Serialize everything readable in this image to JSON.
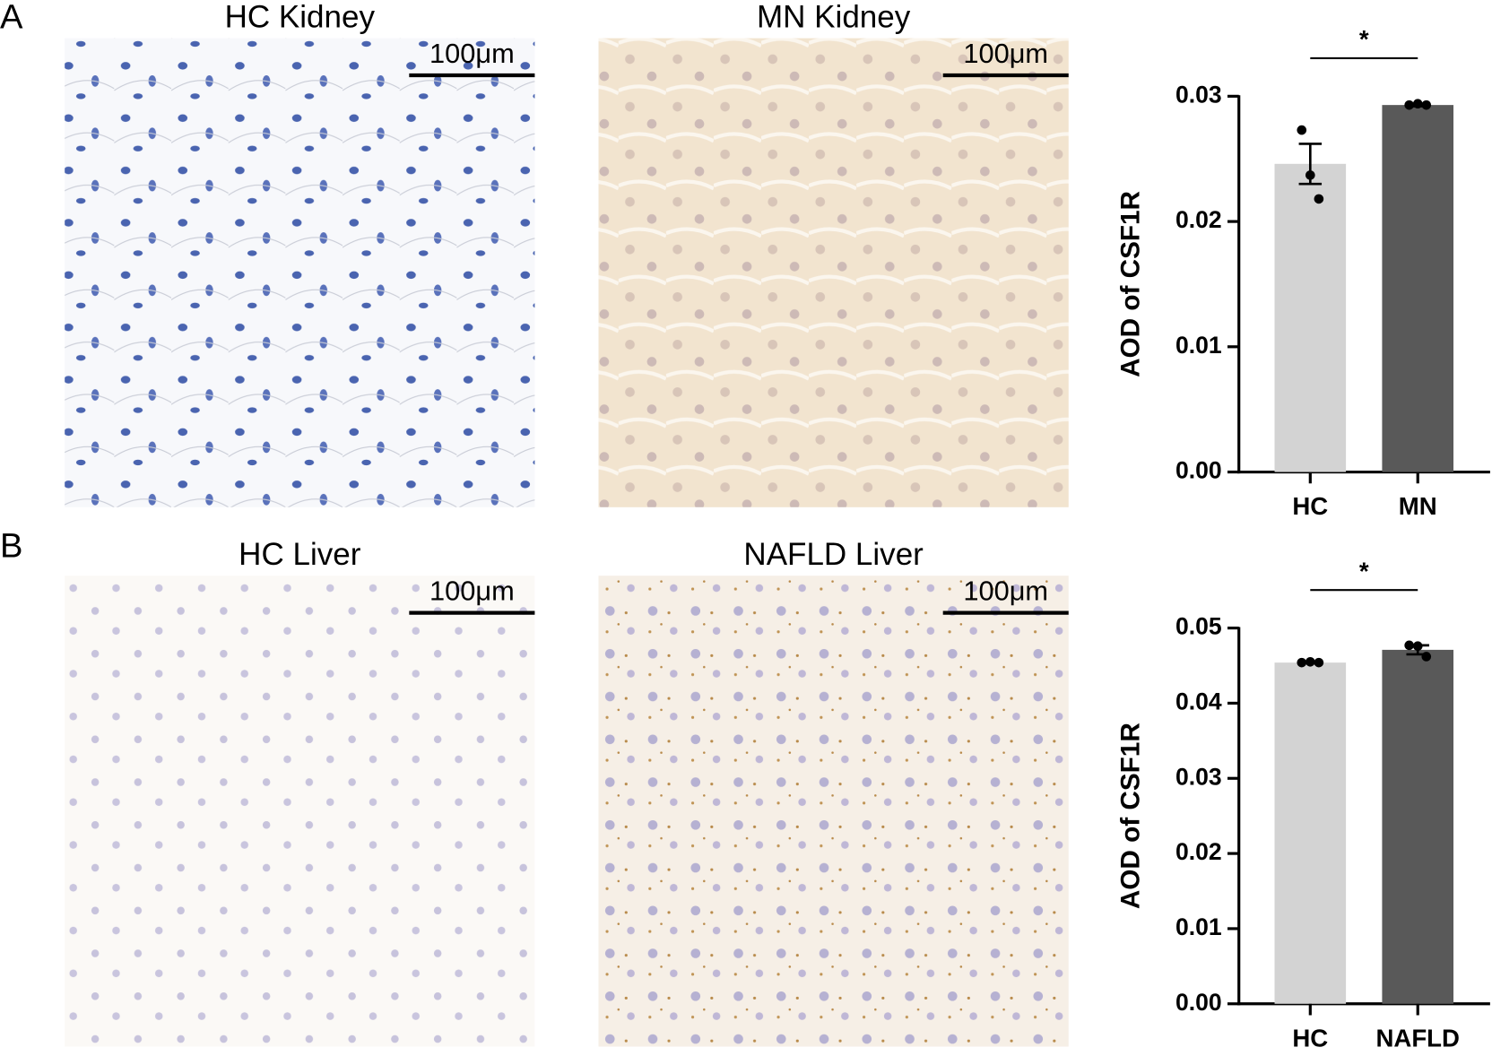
{
  "panel_labels": [
    "A",
    "B"
  ],
  "images": [
    {
      "title": "HC Kidney",
      "scale_bar": "100μm"
    },
    {
      "title": "MN Kidney",
      "scale_bar": "100μm"
    },
    {
      "title": "HC Liver",
      "scale_bar": "100μm"
    },
    {
      "title": "NAFLD Liver",
      "scale_bar": "100μm"
    }
  ],
  "chart_data": [
    {
      "type": "bar",
      "ylabel": "AOD of CSF1R",
      "categories": [
        "HC",
        "MN"
      ],
      "values": [
        0.0246,
        0.0293
      ],
      "errors": [
        0.0016,
        0.0001
      ],
      "points": [
        [
          0.0273,
          0.0237,
          0.0218
        ],
        [
          0.0293,
          0.0294,
          0.0293
        ]
      ],
      "colors": [
        "#d3d3d3",
        "#595959"
      ],
      "significance": "*",
      "ylim": [
        0,
        0.03
      ],
      "yticks": [
        {
          "value": 0,
          "label": "0.00"
        },
        0.01,
        0.02,
        0.03
      ]
    },
    {
      "type": "bar",
      "ylabel": "AOD of CSF1R",
      "categories": [
        "HC",
        "NAFLD"
      ],
      "values": [
        0.0454,
        0.0471
      ],
      "errors": [
        0.0001,
        0.0006
      ],
      "points": [
        [
          0.0454,
          0.0455,
          0.0454
        ],
        [
          0.0477,
          0.0476,
          0.0462
        ]
      ],
      "colors": [
        "#d3d3d3",
        "#595959"
      ],
      "significance": "*",
      "ylim": [
        0,
        0.05
      ],
      "yticks": [
        {
          "value": 0,
          "label": "0.00"
        },
        0.01,
        0.02,
        0.03,
        0.04,
        0.05
      ]
    }
  ]
}
